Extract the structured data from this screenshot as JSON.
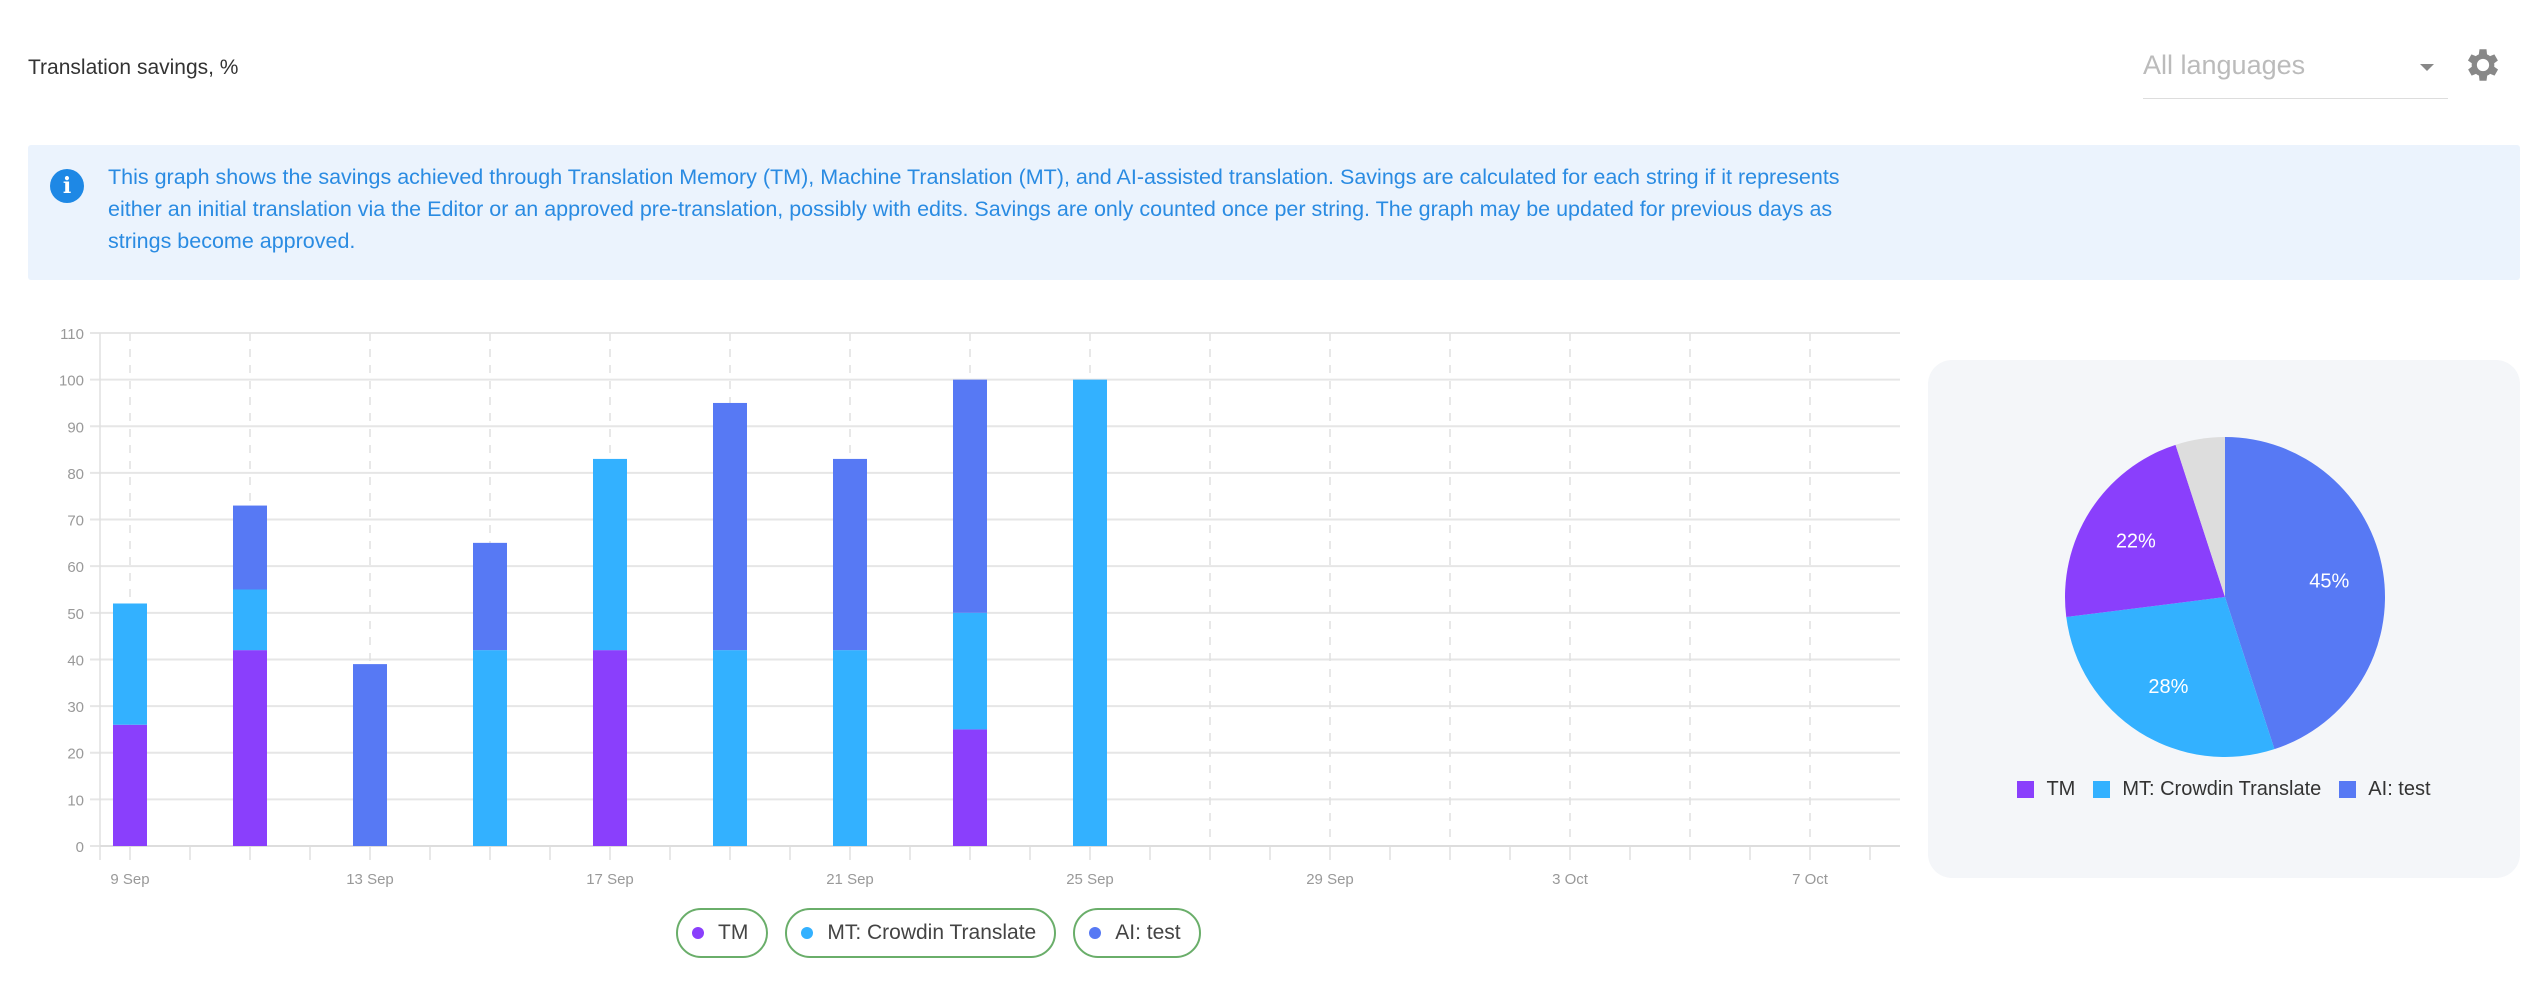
{
  "header": {
    "title": "Translation savings, %",
    "language_select": "All languages",
    "settings_icon": "gear-icon"
  },
  "info": {
    "icon": "info-icon",
    "text": "This graph shows the savings achieved through Translation Memory (TM), Machine Translation (MT), and AI-assisted translation. Savings are calculated for each string if it represents either an initial translation via the Editor or an approved pre-translation, possibly with edits. Savings are only counted once per string. The graph may be updated for previous days as strings become approved."
  },
  "colors": {
    "TM": "#8a3ffc",
    "MT": "#33b1ff",
    "AI": "#5779f4",
    "other": "#dddddd"
  },
  "chart_data": [
    {
      "type": "bar",
      "stacked": true,
      "ylim": [
        0,
        110
      ],
      "yticks": [
        0,
        10,
        20,
        30,
        40,
        50,
        60,
        70,
        80,
        90,
        100,
        110
      ],
      "xrange": [
        "8 Sep",
        "8 Oct"
      ],
      "xtick_labels": [
        "9 Sep",
        "13 Sep",
        "17 Sep",
        "21 Sep",
        "25 Sep",
        "29 Sep",
        "3 Oct",
        "7 Oct"
      ],
      "categories": [
        "9 Sep",
        "11 Sep",
        "13 Sep",
        "15 Sep",
        "17 Sep",
        "19 Sep",
        "21 Sep",
        "23 Sep",
        "25 Sep"
      ],
      "series": [
        {
          "name": "TM",
          "values": [
            26,
            42,
            0,
            0,
            42,
            0,
            0,
            25,
            0
          ]
        },
        {
          "name": "MT: Crowdin Translate",
          "values": [
            26,
            13,
            0,
            42,
            41,
            42,
            42,
            25,
            100
          ]
        },
        {
          "name": "AI: test",
          "values": [
            0,
            18,
            39,
            23,
            0,
            53,
            41,
            50,
            0
          ]
        }
      ],
      "grid": true,
      "legend": "bottom"
    },
    {
      "type": "pie",
      "slices": [
        {
          "name": "AI: test",
          "value": 45,
          "label": "45%"
        },
        {
          "name": "MT: Crowdin Translate",
          "value": 28,
          "label": "28%"
        },
        {
          "name": "TM",
          "value": 22,
          "label": "22%"
        },
        {
          "name": "",
          "value": 5,
          "label": ""
        }
      ],
      "legend": "bottom"
    }
  ],
  "legend_chips": [
    {
      "label": "TM"
    },
    {
      "label": "MT: Crowdin Translate"
    },
    {
      "label": "AI: test"
    }
  ]
}
